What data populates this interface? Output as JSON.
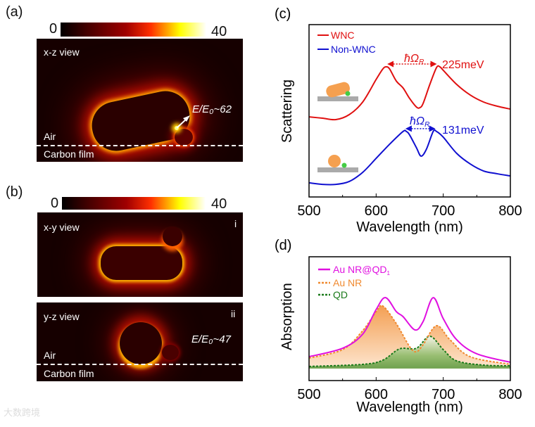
{
  "panel_a": {
    "label": "(a)",
    "colorbar": {
      "min": "0",
      "max": "40"
    },
    "view": "x-z view",
    "enhancement": "E/E₀~62",
    "upper_medium": "Air",
    "lower_medium": "Carbon film"
  },
  "panel_b": {
    "label": "(b)",
    "colorbar": {
      "min": "0",
      "max": "40"
    },
    "sub_i": {
      "view": "x-y view",
      "tag": "i"
    },
    "sub_ii": {
      "view": "y-z view",
      "tag": "ii",
      "enhancement": "E/E₀~47",
      "upper_medium": "Air",
      "lower_medium": "Carbon film"
    }
  },
  "watermark": "大数跨境",
  "colors": {
    "wnc": "#e01010",
    "non_wnc": "#1010d0",
    "hybrid": "#e010e0",
    "au_nr": "#f08a30",
    "qd": "#1a7a1a"
  },
  "chart_data": [
    {
      "panel": "(c)",
      "type": "line",
      "xlabel": "Wavelength (nm)",
      "ylabel": "Scattering",
      "xlim": [
        500,
        800
      ],
      "ylim": [
        0,
        1
      ],
      "xticks": [
        "500",
        "600",
        "700",
        "800"
      ],
      "legend_position": "top-left",
      "series": [
        {
          "name": "WNC",
          "color": "#e01010",
          "x": [
            500,
            520,
            540,
            560,
            580,
            600,
            610,
            615,
            620,
            630,
            640,
            650,
            660,
            665,
            670,
            680,
            690,
            695,
            700,
            720,
            740,
            760,
            780,
            800
          ],
          "y": [
            0.465,
            0.457,
            0.449,
            0.478,
            0.551,
            0.682,
            0.743,
            0.755,
            0.743,
            0.673,
            0.633,
            0.571,
            0.522,
            0.518,
            0.543,
            0.653,
            0.751,
            0.755,
            0.735,
            0.653,
            0.592,
            0.551,
            0.527,
            0.51
          ]
        },
        {
          "name": "Non-WNC",
          "color": "#1010d0",
          "x": [
            500,
            520,
            540,
            560,
            580,
            600,
            620,
            640,
            645,
            650,
            660,
            667,
            675,
            685,
            690,
            700,
            720,
            740,
            760,
            780,
            800
          ],
          "y": [
            0.082,
            0.073,
            0.073,
            0.09,
            0.143,
            0.224,
            0.306,
            0.38,
            0.38,
            0.359,
            0.286,
            0.237,
            0.278,
            0.38,
            0.38,
            0.347,
            0.253,
            0.192,
            0.151,
            0.135,
            0.122
          ]
        }
      ],
      "annotations": [
        {
          "symbol": "ħΩ",
          "subscript": "R",
          "value": "225meV",
          "series": "WNC",
          "from_x": 615,
          "to_x": 692
        },
        {
          "symbol": "ħΩ",
          "subscript": "R",
          "value": "131meV",
          "series": "Non-WNC",
          "from_x": 642,
          "to_x": 690
        }
      ]
    },
    {
      "panel": "(d)",
      "type": "area",
      "xlabel": "Wavelength (nm)",
      "ylabel": "Absorption",
      "xlim": [
        500,
        800
      ],
      "ylim": [
        0,
        1
      ],
      "baseline": 0.097,
      "xticks": [
        "500",
        "600",
        "700",
        "800"
      ],
      "legend_position": "top-left",
      "series": [
        {
          "name": "Au NR@QD",
          "subscript": "1",
          "style": "solid",
          "fill": false,
          "color": "#e010e0",
          "x": [
            500,
            550,
            580,
            600,
            614,
            630,
            640,
            658,
            670,
            685,
            700,
            720,
            750,
            800
          ],
          "y": [
            0.193,
            0.261,
            0.375,
            0.574,
            0.67,
            0.557,
            0.517,
            0.409,
            0.477,
            0.67,
            0.5,
            0.33,
            0.216,
            0.148
          ]
        },
        {
          "name": "Au NR",
          "subscript": "",
          "style": "dotted",
          "fill": true,
          "color": "#f08a30",
          "x": [
            500,
            550,
            580,
            600,
            610,
            630,
            650,
            660,
            670,
            690,
            710,
            740,
            800
          ],
          "y": [
            0.182,
            0.25,
            0.403,
            0.557,
            0.602,
            0.46,
            0.273,
            0.233,
            0.29,
            0.443,
            0.33,
            0.193,
            0.131
          ]
        },
        {
          "name": "QD",
          "subscript": "",
          "style": "dotted",
          "fill": true,
          "color": "#1a7a1a",
          "x": [
            500,
            580,
            610,
            635,
            660,
            680,
            700,
            720,
            760,
            800
          ],
          "y": [
            0.114,
            0.131,
            0.165,
            0.256,
            0.261,
            0.358,
            0.25,
            0.159,
            0.125,
            0.119
          ]
        }
      ]
    }
  ]
}
